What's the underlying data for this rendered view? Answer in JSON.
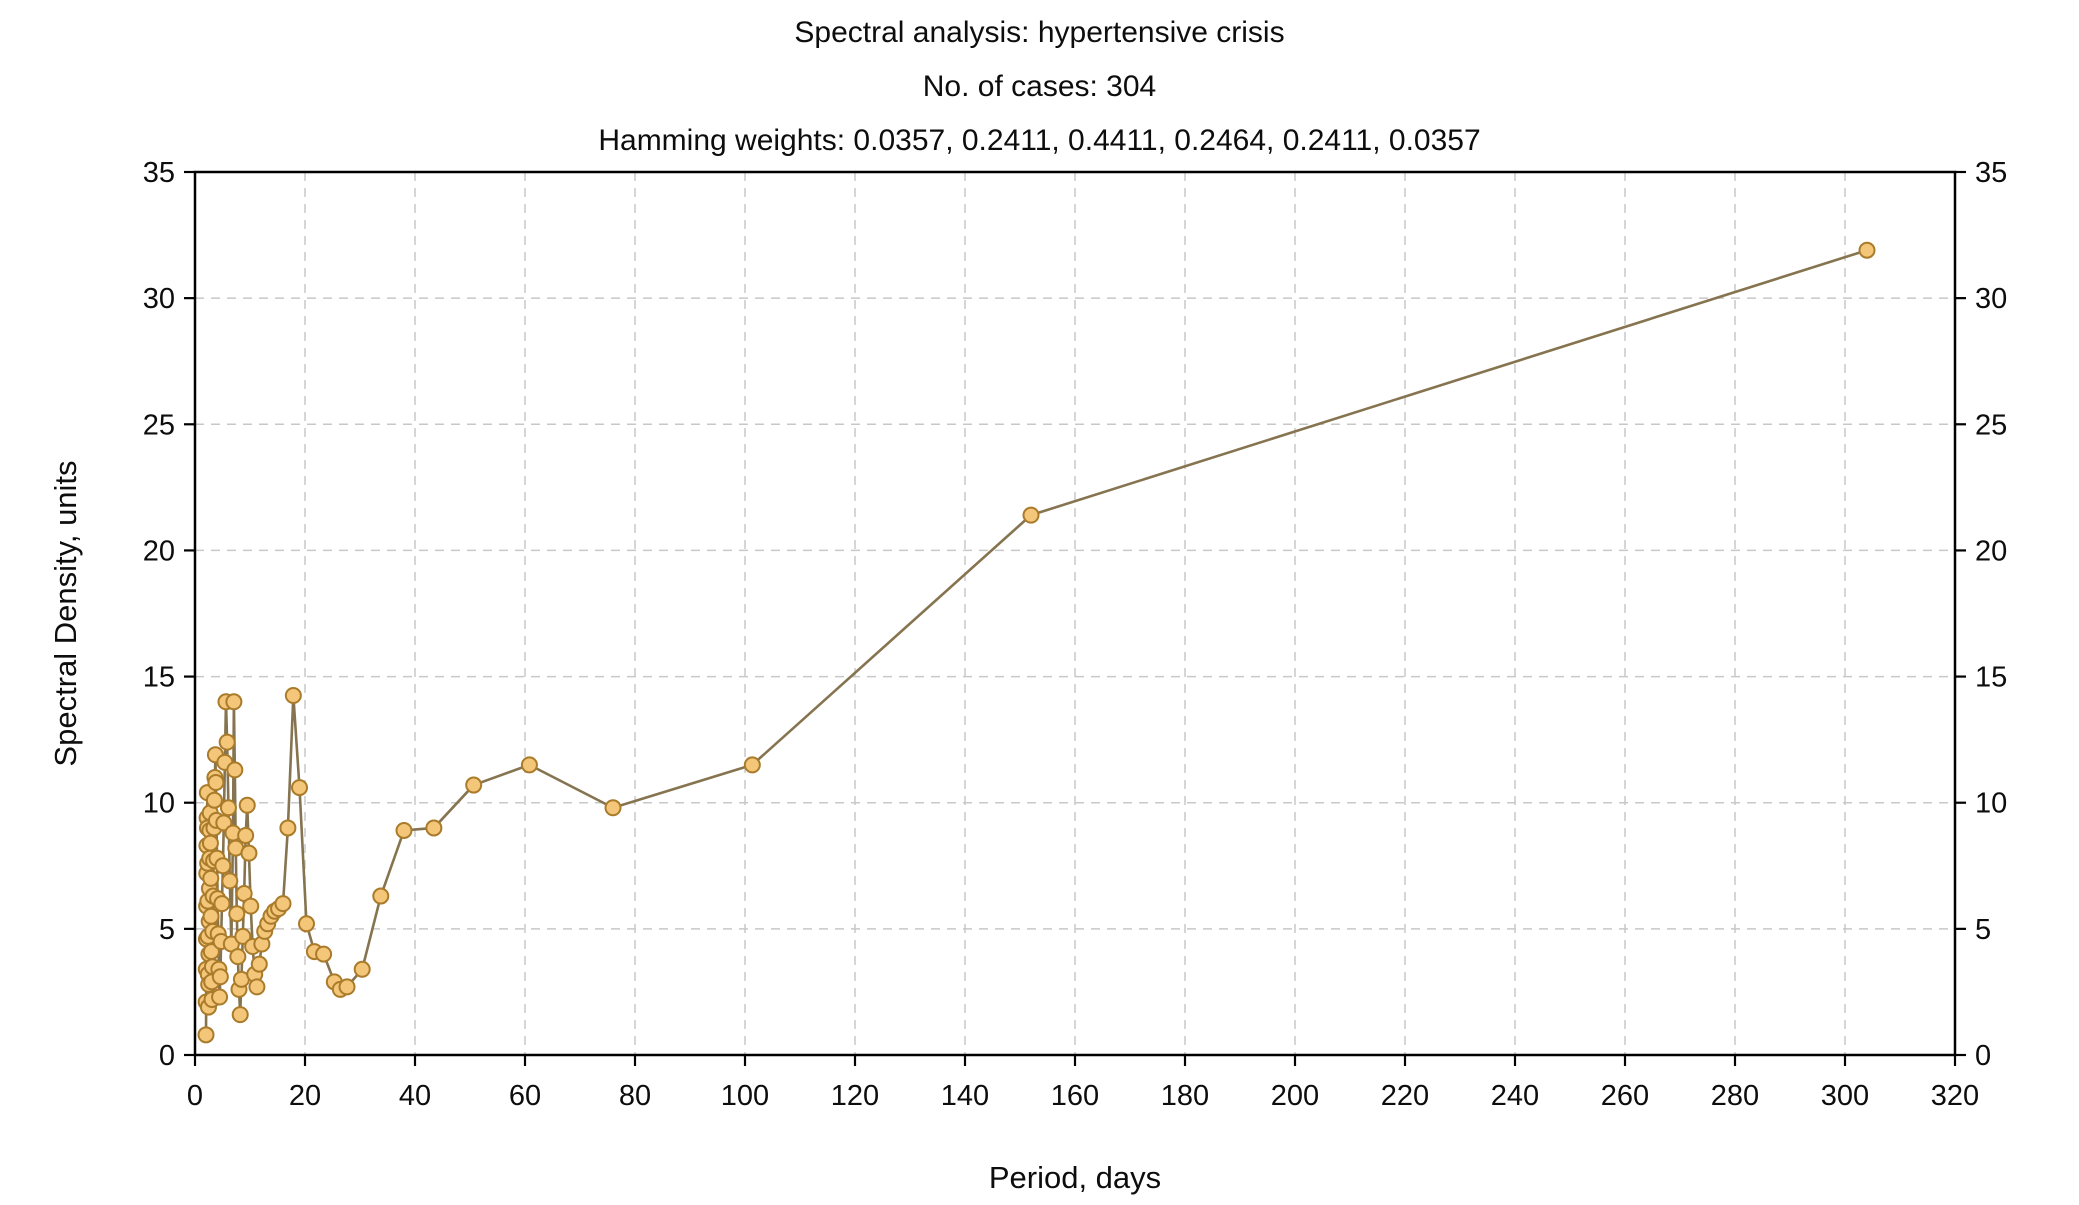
{
  "chart_data": {
    "type": "line",
    "title_lines": [
      "Spectral analysis: hypertensive crisis",
      "No. of cases: 304",
      "Hamming weights: 0.0357, 0.2411, 0.4411, 0.2464, 0.2411, 0.0357"
    ],
    "xlabel": "Period, days",
    "ylabel": "Spectral Density, units",
    "xlim": [
      0,
      320
    ],
    "ylim": [
      0,
      35
    ],
    "xticks": [
      0,
      20,
      40,
      60,
      80,
      100,
      120,
      140,
      160,
      180,
      200,
      220,
      240,
      260,
      280,
      300,
      320
    ],
    "yticks": [
      0,
      5,
      10,
      15,
      20,
      25,
      30,
      35
    ],
    "grid": true,
    "legend": "none",
    "colors": {
      "line": "#85744f",
      "marker_fill": "#f3c679",
      "marker_stroke": "#a97b2a",
      "grid": "#c8c8c8",
      "axis": "#000000",
      "text": "#0d0d0d"
    },
    "series": [
      {
        "name": "spectral-density",
        "points": [
          [
            2.0,
            0.8
          ],
          [
            2.03,
            2.1
          ],
          [
            2.05,
            3.4
          ],
          [
            2.08,
            4.6
          ],
          [
            2.11,
            5.9
          ],
          [
            2.14,
            7.2
          ],
          [
            2.17,
            8.3
          ],
          [
            2.2,
            9.4
          ],
          [
            2.24,
            10.4
          ],
          [
            2.27,
            9.0
          ],
          [
            2.3,
            7.6
          ],
          [
            2.34,
            6.1
          ],
          [
            2.38,
            4.7
          ],
          [
            2.41,
            3.2
          ],
          [
            2.45,
            1.9
          ],
          [
            2.49,
            2.8
          ],
          [
            2.53,
            4.0
          ],
          [
            2.58,
            5.3
          ],
          [
            2.62,
            6.6
          ],
          [
            2.67,
            7.8
          ],
          [
            2.71,
            8.9
          ],
          [
            2.76,
            9.6
          ],
          [
            2.81,
            8.4
          ],
          [
            2.87,
            7.0
          ],
          [
            2.92,
            5.5
          ],
          [
            2.98,
            4.1
          ],
          [
            3.04,
            2.9
          ],
          [
            3.1,
            2.2
          ],
          [
            3.17,
            3.5
          ],
          [
            3.23,
            4.9
          ],
          [
            3.3,
            6.3
          ],
          [
            3.38,
            7.7
          ],
          [
            3.45,
            9.0
          ],
          [
            3.53,
            10.1
          ],
          [
            3.62,
            11.0
          ],
          [
            3.71,
            11.9
          ],
          [
            3.8,
            10.8
          ],
          [
            3.9,
            9.3
          ],
          [
            4.0,
            7.8
          ],
          [
            4.11,
            6.2
          ],
          [
            4.22,
            4.8
          ],
          [
            4.34,
            3.4
          ],
          [
            4.47,
            2.3
          ],
          [
            4.61,
            3.1
          ],
          [
            4.75,
            4.5
          ],
          [
            4.9,
            6.0
          ],
          [
            5.07,
            7.5
          ],
          [
            5.24,
            9.2
          ],
          [
            5.43,
            11.6
          ],
          [
            5.63,
            14.0
          ],
          [
            5.85,
            12.4
          ],
          [
            6.08,
            9.8
          ],
          [
            6.33,
            6.9
          ],
          [
            6.61,
            4.4
          ],
          [
            6.91,
            8.8
          ],
          [
            7.07,
            14.0
          ],
          [
            7.24,
            11.3
          ],
          [
            7.41,
            8.2
          ],
          [
            7.6,
            5.6
          ],
          [
            7.79,
            3.9
          ],
          [
            8.0,
            2.6
          ],
          [
            8.22,
            1.6
          ],
          [
            8.44,
            3.0
          ],
          [
            8.69,
            4.7
          ],
          [
            8.94,
            6.4
          ],
          [
            9.21,
            8.7
          ],
          [
            9.5,
            9.9
          ],
          [
            9.81,
            8.0
          ],
          [
            10.13,
            5.9
          ],
          [
            10.48,
            4.3
          ],
          [
            10.86,
            3.2
          ],
          [
            11.26,
            2.7
          ],
          [
            11.69,
            3.6
          ],
          [
            12.16,
            4.4
          ],
          [
            12.67,
            4.9
          ],
          [
            13.22,
            5.2
          ],
          [
            13.82,
            5.5
          ],
          [
            14.48,
            5.7
          ],
          [
            15.2,
            5.8
          ],
          [
            16.0,
            6.0
          ],
          [
            16.89,
            9.0
          ],
          [
            17.88,
            14.25
          ],
          [
            19.0,
            10.6
          ],
          [
            20.27,
            5.2
          ],
          [
            21.71,
            4.1
          ],
          [
            23.38,
            4.0
          ],
          [
            25.33,
            2.9
          ],
          [
            26.43,
            2.6
          ],
          [
            27.64,
            2.7
          ],
          [
            30.4,
            3.4
          ],
          [
            33.78,
            6.3
          ],
          [
            38.0,
            8.9
          ],
          [
            43.43,
            9.0
          ],
          [
            50.67,
            10.7
          ],
          [
            60.8,
            11.5
          ],
          [
            76.0,
            9.8
          ],
          [
            101.33,
            11.5
          ],
          [
            152.0,
            21.4
          ],
          [
            304.0,
            31.9
          ]
        ]
      }
    ]
  }
}
